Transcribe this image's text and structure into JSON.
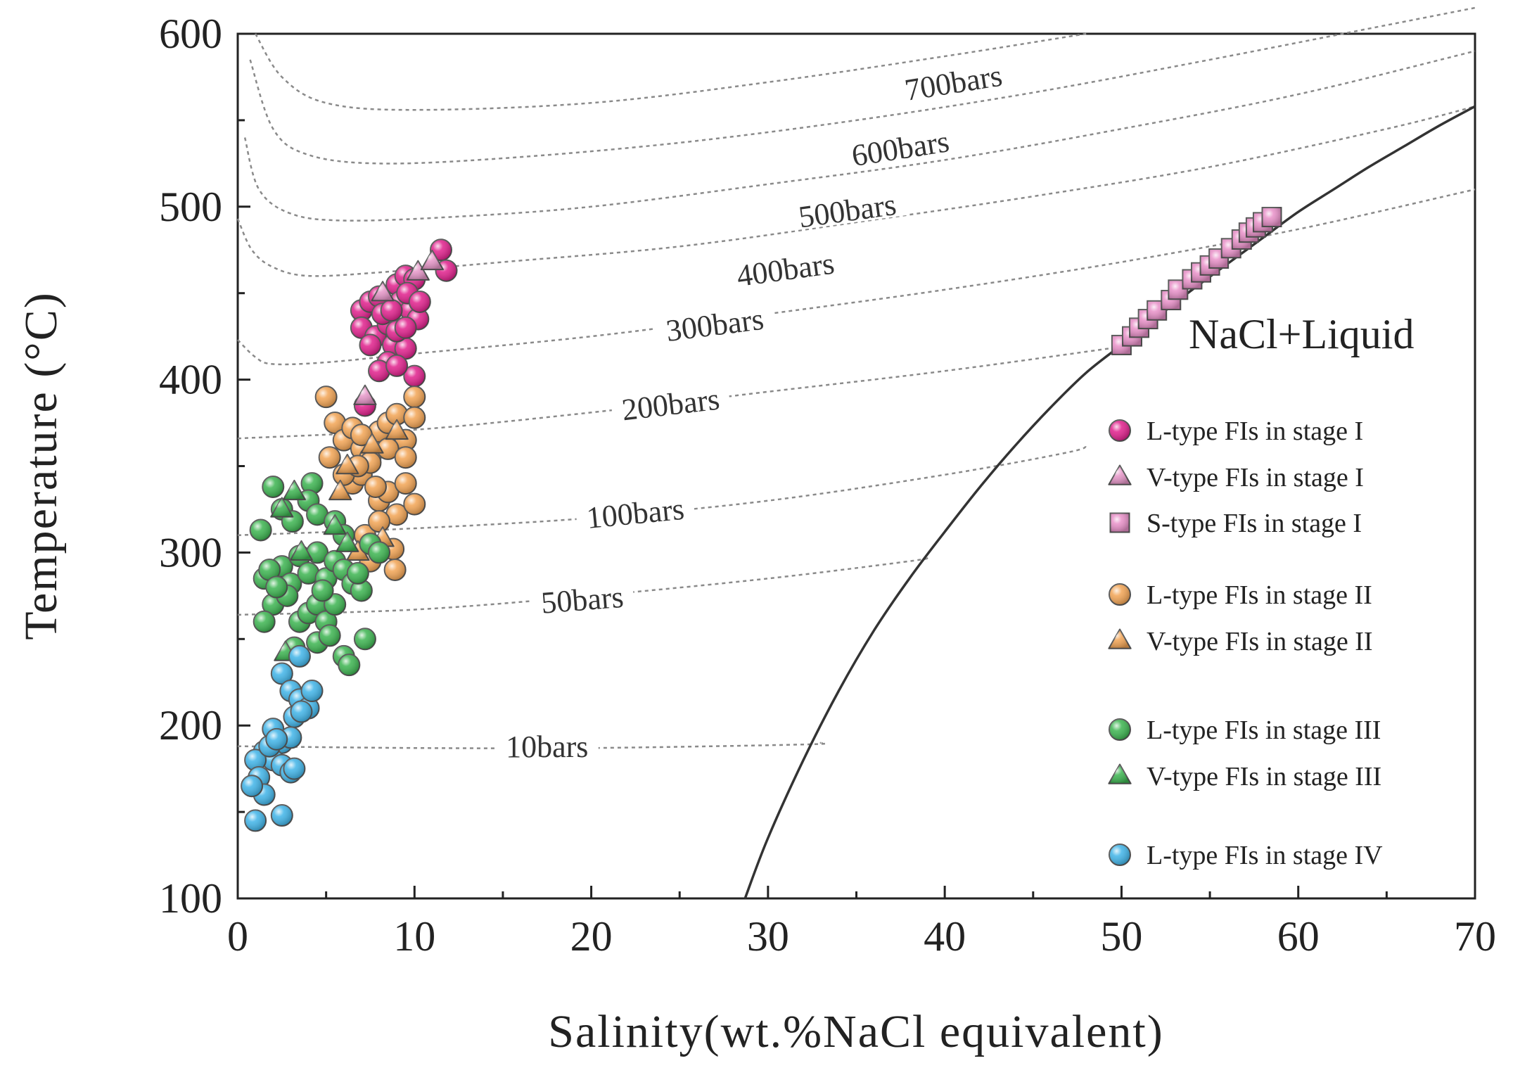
{
  "chart_data": {
    "type": "scatter",
    "xlabel": "Salinity(wt.%NaCl equivalent)",
    "ylabel": "Temperature (°C)",
    "xlim": [
      0,
      70
    ],
    "ylim": [
      100,
      600
    ],
    "xticks": [
      "0",
      "10",
      "20",
      "30",
      "40",
      "50",
      "60",
      "70"
    ],
    "yticks": [
      "100",
      "200",
      "300",
      "400",
      "500",
      "600"
    ],
    "grid": false,
    "legend_position": "right",
    "region_label": "NaCl+Liquid",
    "halite_saturation_curve": [
      [
        28.7,
        100
      ],
      [
        30,
        135
      ],
      [
        32,
        180
      ],
      [
        34,
        220
      ],
      [
        36,
        255
      ],
      [
        38,
        285
      ],
      [
        40,
        312
      ],
      [
        42,
        338
      ],
      [
        44,
        362
      ],
      [
        46,
        384
      ],
      [
        48,
        404
      ],
      [
        50,
        420
      ],
      [
        52,
        436
      ],
      [
        54,
        452
      ],
      [
        56,
        467
      ],
      [
        58,
        482
      ],
      [
        60,
        497
      ],
      [
        62,
        510
      ],
      [
        64,
        523
      ],
      [
        66,
        535
      ],
      [
        68,
        547
      ],
      [
        70,
        558
      ]
    ],
    "isobars": [
      {
        "label": "10bars",
        "label_at": [
          17.5,
          187
        ],
        "points": [
          [
            0,
            188
          ],
          [
            10,
            187
          ],
          [
            20,
            187
          ],
          [
            32,
            189
          ],
          [
            33,
            190
          ]
        ]
      },
      {
        "label": "50bars",
        "label_at": [
          19.5,
          272
        ],
        "points": [
          [
            0,
            264
          ],
          [
            10,
            267
          ],
          [
            20,
            275
          ],
          [
            30,
            285
          ],
          [
            38,
            295
          ],
          [
            39,
            297
          ]
        ]
      },
      {
        "label": "100bars",
        "label_at": [
          22.5,
          322
        ],
        "points": [
          [
            0,
            310
          ],
          [
            10,
            314
          ],
          [
            20,
            320
          ],
          [
            30,
            330
          ],
          [
            40,
            345
          ],
          [
            47,
            358
          ],
          [
            48,
            362
          ]
        ]
      },
      {
        "label": "200bars",
        "label_at": [
          24.5,
          385
        ],
        "points": [
          [
            0,
            366
          ],
          [
            10,
            371
          ],
          [
            20,
            381
          ],
          [
            30,
            393
          ],
          [
            40,
            405
          ],
          [
            50,
            419
          ]
        ]
      },
      {
        "label": "300bars",
        "label_at": [
          27,
          431
        ],
        "points": [
          [
            0,
            423
          ],
          [
            1,
            413
          ],
          [
            2,
            409
          ],
          [
            5,
            410
          ],
          [
            10,
            415
          ],
          [
            20,
            425
          ],
          [
            30,
            438
          ],
          [
            40,
            452
          ],
          [
            50,
            468
          ],
          [
            60,
            487
          ],
          [
            70,
            510
          ]
        ]
      },
      {
        "label": "400bars",
        "label_at": [
          31,
          463
        ],
        "points": [
          [
            0,
            493
          ],
          [
            0.8,
            475
          ],
          [
            2,
            465
          ],
          [
            4,
            460
          ],
          [
            8,
            462
          ],
          [
            15,
            468
          ],
          [
            25,
            477
          ],
          [
            35,
            491
          ],
          [
            45,
            506
          ],
          [
            55,
            523
          ],
          [
            65,
            545
          ],
          [
            70,
            558
          ]
        ]
      },
      {
        "label": "500bars",
        "label_at": [
          34.5,
          497
        ],
        "points": [
          [
            0.4,
            540
          ],
          [
            1.2,
            510
          ],
          [
            3,
            496
          ],
          [
            6,
            492
          ],
          [
            12,
            494
          ],
          [
            20,
            500
          ],
          [
            30,
            513
          ],
          [
            40,
            527
          ],
          [
            50,
            545
          ],
          [
            60,
            565
          ],
          [
            70,
            590
          ]
        ]
      },
      {
        "label": "600bars",
        "label_at": [
          37.5,
          533
        ],
        "points": [
          [
            0.7,
            585
          ],
          [
            2,
            545
          ],
          [
            4,
            530
          ],
          [
            8,
            525
          ],
          [
            15,
            528
          ],
          [
            25,
            537
          ],
          [
            35,
            550
          ],
          [
            45,
            566
          ],
          [
            55,
            585
          ],
          [
            65,
            605
          ],
          [
            70,
            615
          ]
        ]
      },
      {
        "label": "700bars",
        "label_at": [
          40.5,
          571
        ],
        "points": [
          [
            1,
            600
          ],
          [
            2.5,
            575
          ],
          [
            5,
            560
          ],
          [
            10,
            556
          ],
          [
            20,
            560
          ],
          [
            30,
            572
          ],
          [
            40,
            587
          ],
          [
            48,
            600
          ]
        ]
      }
    ],
    "series": [
      {
        "name": "L-type FIs  in stage I",
        "marker": "circle",
        "color": "#e0208c",
        "points": [
          [
            7,
            440
          ],
          [
            7.5,
            445
          ],
          [
            8,
            448
          ],
          [
            7,
            430
          ],
          [
            7.8,
            425
          ],
          [
            8.5,
            432
          ],
          [
            9,
            455
          ],
          [
            9.5,
            460
          ],
          [
            10,
            458
          ],
          [
            9.2,
            445
          ],
          [
            9.8,
            440
          ],
          [
            10.2,
            435
          ],
          [
            8.8,
            420
          ],
          [
            9.5,
            418
          ],
          [
            10,
            402
          ],
          [
            8.5,
            410
          ],
          [
            8,
            405
          ],
          [
            9,
            428
          ],
          [
            11.5,
            475
          ],
          [
            11.8,
            463
          ],
          [
            7.2,
            385
          ],
          [
            9.6,
            450
          ],
          [
            10.3,
            445
          ],
          [
            8.2,
            438
          ],
          [
            7.5,
            420
          ],
          [
            9,
            408
          ],
          [
            9.5,
            430
          ],
          [
            8.7,
            440
          ]
        ]
      },
      {
        "name": "V-type FIs  in stage I",
        "marker": "triangle",
        "color": "#e696c8",
        "points": [
          [
            7.2,
            390
          ],
          [
            8.2,
            450
          ],
          [
            10.2,
            462
          ],
          [
            11,
            468
          ]
        ]
      },
      {
        "name": "S-type FIs in stage I",
        "marker": "square",
        "color": "#e890c8",
        "points": [
          [
            50,
            420
          ],
          [
            50.6,
            425
          ],
          [
            51,
            430
          ],
          [
            51.5,
            435
          ],
          [
            52,
            440
          ],
          [
            52.8,
            446
          ],
          [
            53.2,
            452
          ],
          [
            54,
            458
          ],
          [
            54.5,
            462
          ],
          [
            55,
            466
          ],
          [
            55.5,
            470
          ],
          [
            56.2,
            476
          ],
          [
            56.8,
            481
          ],
          [
            57.2,
            485
          ],
          [
            57.6,
            488
          ],
          [
            58,
            491
          ],
          [
            58.5,
            494
          ]
        ]
      },
      {
        "name": "L-type FIs  in stage II",
        "marker": "circle",
        "color": "#f2a454",
        "points": [
          [
            5,
            390
          ],
          [
            5.5,
            375
          ],
          [
            6,
            365
          ],
          [
            6.5,
            372
          ],
          [
            7,
            360
          ],
          [
            7.5,
            355
          ],
          [
            8,
            370
          ],
          [
            8.5,
            375
          ],
          [
            9,
            380
          ],
          [
            9.5,
            365
          ],
          [
            10,
            390
          ],
          [
            10,
            378
          ],
          [
            5.2,
            355
          ],
          [
            6.5,
            340
          ],
          [
            7,
            345
          ],
          [
            7.5,
            352
          ],
          [
            8,
            330
          ],
          [
            8.5,
            335
          ],
          [
            9,
            322
          ],
          [
            9.5,
            340
          ],
          [
            10,
            328
          ],
          [
            6,
            345
          ],
          [
            7.2,
            310
          ],
          [
            8,
            318
          ],
          [
            8.8,
            302
          ],
          [
            8.9,
            290
          ],
          [
            7.5,
            295
          ],
          [
            7,
            368
          ],
          [
            8.5,
            360
          ],
          [
            9.5,
            355
          ],
          [
            6.8,
            350
          ],
          [
            7.8,
            338
          ]
        ]
      },
      {
        "name": "V-type FIs  in stage II",
        "marker": "triangle",
        "color": "#f2a454",
        "points": [
          [
            5.8,
            335
          ],
          [
            6.2,
            350
          ],
          [
            7.6,
            362
          ],
          [
            9,
            370
          ],
          [
            6.8,
            300
          ],
          [
            8.2,
            308
          ]
        ]
      },
      {
        "name": "L-type FIs  in stage III",
        "marker": "circle",
        "color": "#3cb450",
        "points": [
          [
            2,
            338
          ],
          [
            4.2,
            340
          ],
          [
            1.3,
            313
          ],
          [
            2.5,
            325
          ],
          [
            3.1,
            318
          ],
          [
            4,
            330
          ],
          [
            4.5,
            322
          ],
          [
            5.5,
            318
          ],
          [
            6,
            310
          ],
          [
            1.5,
            285
          ],
          [
            2.5,
            292
          ],
          [
            3,
            282
          ],
          [
            3.5,
            298
          ],
          [
            4,
            288
          ],
          [
            4.5,
            300
          ],
          [
            5,
            285
          ],
          [
            5.5,
            295
          ],
          [
            6,
            290
          ],
          [
            6.5,
            282
          ],
          [
            7,
            278
          ],
          [
            7.5,
            305
          ],
          [
            8,
            300
          ],
          [
            2,
            270
          ],
          [
            2.8,
            275
          ],
          [
            3.5,
            260
          ],
          [
            4,
            265
          ],
          [
            4.5,
            270
          ],
          [
            5,
            260
          ],
          [
            5.5,
            270
          ],
          [
            1.5,
            260
          ],
          [
            3.2,
            245
          ],
          [
            4.5,
            248
          ],
          [
            5.2,
            252
          ],
          [
            6,
            240
          ],
          [
            6.3,
            235
          ],
          [
            7.2,
            250
          ],
          [
            1.8,
            290
          ],
          [
            2.2,
            280
          ],
          [
            4.8,
            278
          ],
          [
            6.8,
            288
          ]
        ]
      },
      {
        "name": "V-type FIs  in stage III",
        "marker": "triangle",
        "color": "#3cb450",
        "points": [
          [
            2.5,
            325
          ],
          [
            3.2,
            335
          ],
          [
            3.6,
            300
          ],
          [
            5.5,
            315
          ],
          [
            6.2,
            305
          ],
          [
            2.7,
            242
          ]
        ]
      },
      {
        "name": "L-type FIs  in stage IV",
        "marker": "circle",
        "color": "#40b4e8",
        "points": [
          [
            2.5,
            230
          ],
          [
            3.5,
            240
          ],
          [
            3,
            220
          ],
          [
            3.5,
            215
          ],
          [
            4,
            210
          ],
          [
            4.2,
            220
          ],
          [
            3.2,
            205
          ],
          [
            2,
            198
          ],
          [
            2.5,
            190
          ],
          [
            3,
            193
          ],
          [
            1.5,
            185
          ],
          [
            2,
            180
          ],
          [
            2.5,
            177
          ],
          [
            3,
            173
          ],
          [
            1,
            180
          ],
          [
            1.2,
            170
          ],
          [
            1.5,
            160
          ],
          [
            0.8,
            165
          ],
          [
            1,
            145
          ],
          [
            2.5,
            148
          ],
          [
            3.2,
            175
          ],
          [
            1.8,
            188
          ],
          [
            3.6,
            208
          ],
          [
            2.2,
            192
          ]
        ]
      }
    ]
  }
}
